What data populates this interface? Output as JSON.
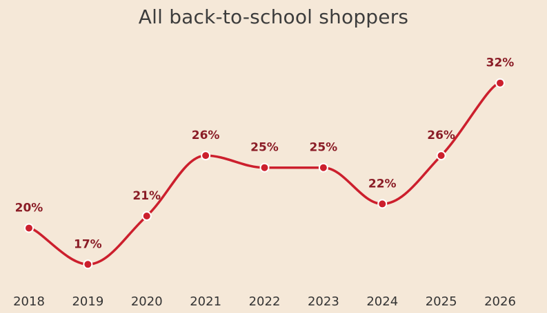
{
  "chart_data": {
    "type": "line",
    "title": "All back-to-school shoppers",
    "xlabel": "",
    "ylabel": "",
    "categories": [
      "2018",
      "2019",
      "2020",
      "2021",
      "2022",
      "2023",
      "2024",
      "2025",
      "2026"
    ],
    "values": [
      20,
      17,
      21,
      26,
      25,
      25,
      22,
      26,
      32
    ],
    "data_labels": [
      "20%",
      "17%",
      "21%",
      "26%",
      "25%",
      "25%",
      "22%",
      "26%",
      "32%"
    ],
    "ylim": [
      14,
      35
    ],
    "grid": false,
    "legend": "none",
    "smooth": true
  },
  "colors": {
    "background": "#f5e8d8",
    "line": "#cc1f2d",
    "label": "#8a1c26",
    "title": "#3c3c3c",
    "tick": "#333333"
  }
}
